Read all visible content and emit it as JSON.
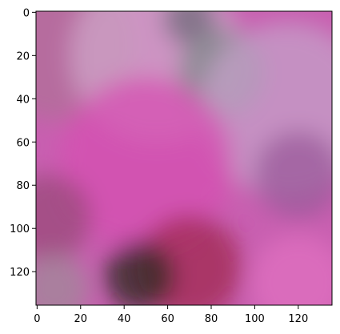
{
  "chart_data": {
    "type": "heatmap",
    "title": "",
    "xlabel": "",
    "ylabel": "",
    "xlim": [
      -0.5,
      135.5
    ],
    "ylim": [
      135.5,
      -0.5
    ],
    "x_ticks": [
      0,
      20,
      40,
      60,
      80,
      100,
      120
    ],
    "y_ticks": [
      0,
      20,
      40,
      60,
      80,
      100,
      120
    ],
    "x_tick_labels": [
      "0",
      "20",
      "40",
      "60",
      "80",
      "100",
      "120"
    ],
    "y_tick_labels": [
      "0",
      "20",
      "40",
      "60",
      "80",
      "100",
      "120"
    ],
    "grid": false,
    "image": {
      "width": 136,
      "height": 136,
      "base_color": "#c85fb0",
      "regions": [
        {
          "name": "upper-left-mauve",
          "color": "#b07098",
          "cx": 10,
          "cy": 15,
          "r": 35
        },
        {
          "name": "upper-light-haze",
          "color": "#cfa6c9",
          "cx": 55,
          "cy": 20,
          "r": 40
        },
        {
          "name": "upper-center-dark",
          "color": "#6f6a7a",
          "cx": 70,
          "cy": 3,
          "r": 12
        },
        {
          "name": "upper-right-gray-green",
          "color": "#7d8a8a",
          "cx": 85,
          "cy": 28,
          "r": 20
        },
        {
          "name": "right-lavender",
          "color": "#c4a0c8",
          "cx": 115,
          "cy": 45,
          "r": 40
        },
        {
          "name": "center-magenta",
          "color": "#d64fb2",
          "cx": 50,
          "cy": 70,
          "r": 40
        },
        {
          "name": "right-purple-shadow",
          "color": "#9a5a9a",
          "cx": 120,
          "cy": 75,
          "r": 20
        },
        {
          "name": "left-dark-mauve",
          "color": "#9a4a7a",
          "cx": 5,
          "cy": 95,
          "r": 20
        },
        {
          "name": "lower-red",
          "color": "#a02a50",
          "cx": 70,
          "cy": 118,
          "r": 24
        },
        {
          "name": "lower-dark-green",
          "color": "#2a2a1e",
          "cx": 47,
          "cy": 122,
          "r": 16
        },
        {
          "name": "lower-left-gray",
          "color": "#a08a98",
          "cx": 8,
          "cy": 128,
          "r": 16
        },
        {
          "name": "lower-right-pink",
          "color": "#e070c0",
          "cx": 120,
          "cy": 125,
          "r": 22
        }
      ]
    }
  }
}
